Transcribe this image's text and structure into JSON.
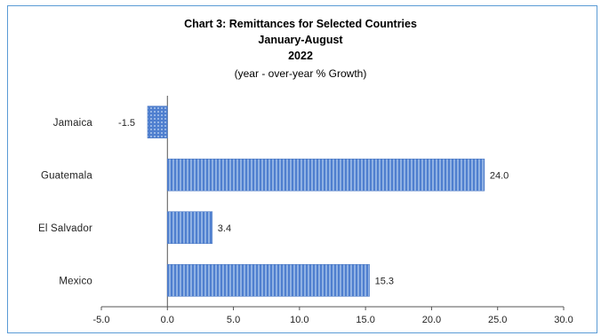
{
  "chart_data": {
    "type": "bar",
    "orientation": "horizontal",
    "title": "Chart 3:  Remittances for Selected Countries",
    "subtitle_1": "January-August",
    "subtitle_2": "2022",
    "subtitle_3": "(year - over-year % Growth)",
    "categories": [
      "Jamaica",
      "Guatemala",
      "El Salvador",
      "Mexico"
    ],
    "values": [
      -1.5,
      24.0,
      3.4,
      15.3
    ],
    "data_labels": [
      "-1.5",
      "24.0",
      "3.4",
      "15.3"
    ],
    "xlim": [
      -5.0,
      30.0
    ],
    "xticks": [
      "-5.0",
      "0.0",
      "5.0",
      "10.0",
      "15.0",
      "20.0",
      "25.0",
      "30.0"
    ],
    "xtick_values": [
      -5,
      0,
      5,
      10,
      15,
      20,
      25,
      30
    ],
    "grid": false,
    "legend": "none",
    "bar_color": "#5b8fd6"
  }
}
